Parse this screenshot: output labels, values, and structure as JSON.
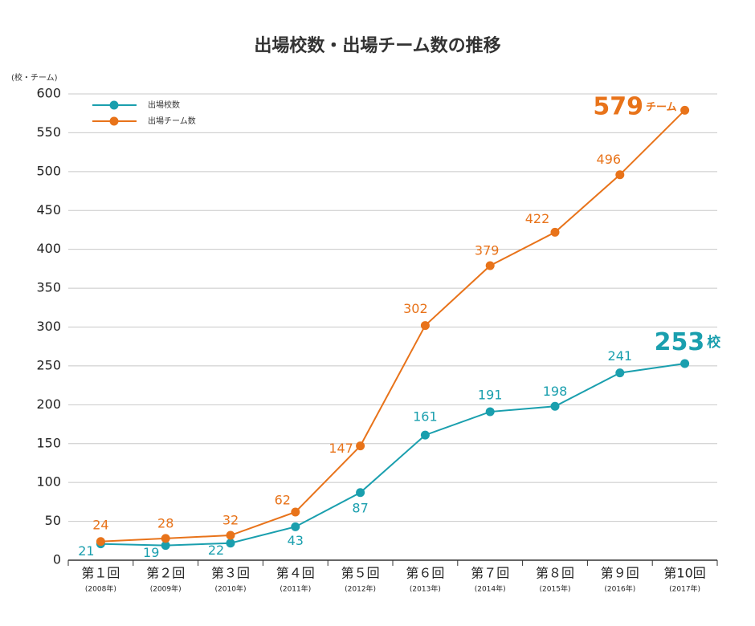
{
  "chart_data": {
    "type": "line",
    "title": "出場校数・出場チーム数の推移",
    "y_label": "(校・チーム)",
    "categories": [
      "第１回",
      "第２回",
      "第３回",
      "第４回",
      "第５回",
      "第６回",
      "第７回",
      "第８回",
      "第９回",
      "第10回"
    ],
    "category_years": [
      "(2008年)",
      "(2009年)",
      "(2010年)",
      "(2011年)",
      "(2012年)",
      "(2013年)",
      "(2014年)",
      "(2015年)",
      "(2016年)",
      "(2017年)"
    ],
    "series": [
      {
        "name": "出場校数",
        "color": "#1a9fae",
        "values": [
          21,
          19,
          22,
          43,
          87,
          161,
          191,
          198,
          241,
          253
        ],
        "end_unit": "校"
      },
      {
        "name": "出場チーム数",
        "color": "#e8731a",
        "values": [
          24,
          28,
          32,
          62,
          147,
          302,
          379,
          422,
          496,
          579
        ],
        "end_unit": "チーム"
      }
    ],
    "ylim": [
      0,
      600
    ],
    "yticks": [
      0,
      50,
      100,
      150,
      200,
      250,
      300,
      350,
      400,
      450,
      500,
      550,
      600
    ],
    "grid": true,
    "legend": "top-left"
  }
}
